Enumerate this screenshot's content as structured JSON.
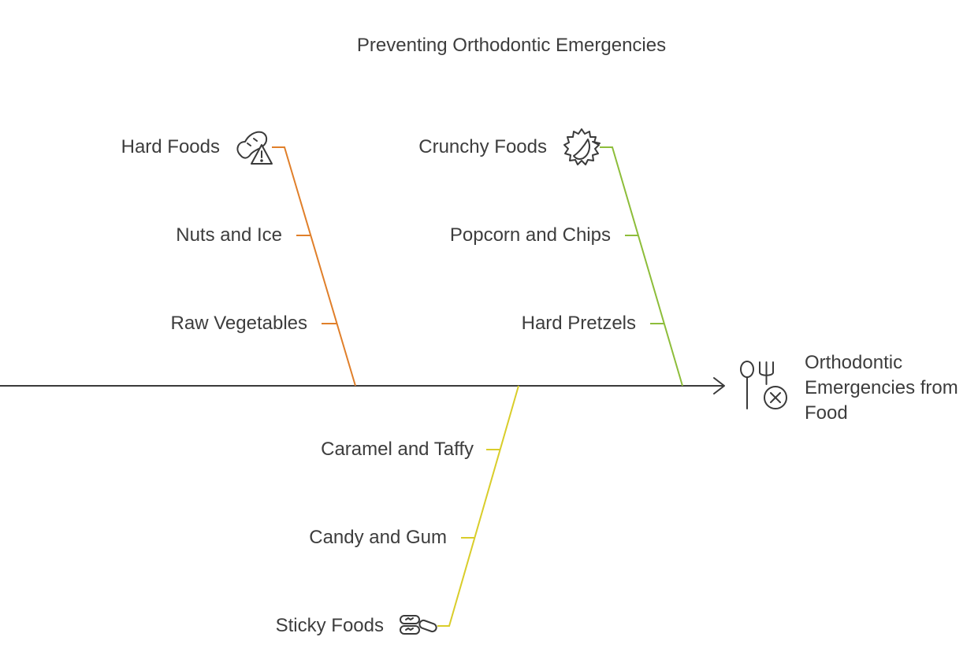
{
  "title": "Preventing Orthodontic Emergencies",
  "effect": {
    "label": "Orthodontic Emergencies from Food",
    "icon": "cutlery-cancel-icon"
  },
  "categories": [
    {
      "name": "Hard Foods",
      "icon": "peanut-warning-icon",
      "color": "#e07f2a",
      "causes": [
        "Nuts and Ice",
        "Raw Vegetables"
      ]
    },
    {
      "name": "Crunchy Foods",
      "icon": "spiky-fruit-icon",
      "color": "#8dbd3a",
      "causes": [
        "Popcorn and Chips",
        "Hard Pretzels"
      ]
    },
    {
      "name": "Sticky Foods",
      "icon": "candy-pieces-icon",
      "color": "#d9cd2a",
      "causes": [
        "Caramel and Taffy",
        "Candy and Gum"
      ]
    }
  ]
}
